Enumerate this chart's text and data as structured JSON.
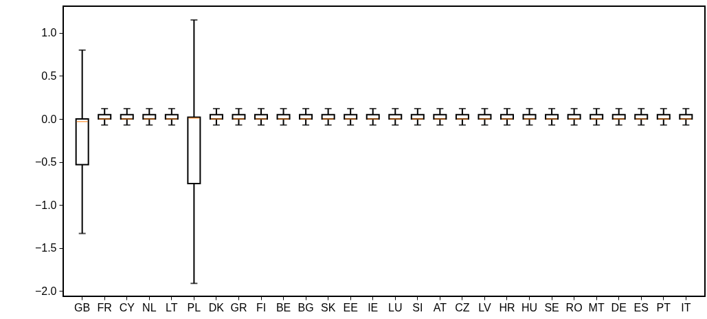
{
  "chart_data": {
    "type": "box",
    "categories": [
      "GB",
      "FR",
      "CY",
      "NL",
      "LT",
      "PL",
      "DK",
      "GR",
      "FI",
      "BE",
      "BG",
      "SK",
      "EE",
      "IE",
      "LU",
      "SI",
      "AT",
      "CZ",
      "LV",
      "HR",
      "HU",
      "SE",
      "RO",
      "MT",
      "DE",
      "ES",
      "PT",
      "IT"
    ],
    "boxes": [
      {
        "low": -1.33,
        "q1": -0.53,
        "median": -0.03,
        "q3": 0.0,
        "high": 0.8
      },
      {
        "low": -0.07,
        "q1": 0.0,
        "median": 0.0,
        "q3": 0.05,
        "high": 0.12
      },
      {
        "low": -0.07,
        "q1": 0.0,
        "median": 0.0,
        "q3": 0.05,
        "high": 0.12
      },
      {
        "low": -0.07,
        "q1": 0.0,
        "median": 0.0,
        "q3": 0.05,
        "high": 0.12
      },
      {
        "low": -0.07,
        "q1": 0.0,
        "median": 0.0,
        "q3": 0.05,
        "high": 0.12
      },
      {
        "low": -1.91,
        "q1": -0.75,
        "median": 0.01,
        "q3": 0.02,
        "high": 1.15
      },
      {
        "low": -0.07,
        "q1": 0.0,
        "median": 0.0,
        "q3": 0.05,
        "high": 0.12
      },
      {
        "low": -0.07,
        "q1": 0.0,
        "median": 0.0,
        "q3": 0.05,
        "high": 0.12
      },
      {
        "low": -0.07,
        "q1": 0.0,
        "median": 0.0,
        "q3": 0.05,
        "high": 0.12
      },
      {
        "low": -0.07,
        "q1": 0.0,
        "median": 0.0,
        "q3": 0.05,
        "high": 0.12
      },
      {
        "low": -0.07,
        "q1": 0.0,
        "median": 0.0,
        "q3": 0.05,
        "high": 0.12
      },
      {
        "low": -0.07,
        "q1": 0.0,
        "median": 0.0,
        "q3": 0.05,
        "high": 0.12
      },
      {
        "low": -0.07,
        "q1": 0.0,
        "median": 0.0,
        "q3": 0.05,
        "high": 0.12
      },
      {
        "low": -0.07,
        "q1": 0.0,
        "median": 0.0,
        "q3": 0.05,
        "high": 0.12
      },
      {
        "low": -0.07,
        "q1": 0.0,
        "median": 0.0,
        "q3": 0.05,
        "high": 0.12
      },
      {
        "low": -0.07,
        "q1": 0.0,
        "median": 0.0,
        "q3": 0.05,
        "high": 0.12
      },
      {
        "low": -0.07,
        "q1": 0.0,
        "median": 0.0,
        "q3": 0.05,
        "high": 0.12
      },
      {
        "low": -0.07,
        "q1": 0.0,
        "median": 0.0,
        "q3": 0.05,
        "high": 0.12
      },
      {
        "low": -0.07,
        "q1": 0.0,
        "median": 0.0,
        "q3": 0.05,
        "high": 0.12
      },
      {
        "low": -0.07,
        "q1": 0.0,
        "median": 0.0,
        "q3": 0.05,
        "high": 0.12
      },
      {
        "low": -0.07,
        "q1": 0.0,
        "median": 0.0,
        "q3": 0.05,
        "high": 0.12
      },
      {
        "low": -0.07,
        "q1": 0.0,
        "median": 0.0,
        "q3": 0.05,
        "high": 0.12
      },
      {
        "low": -0.07,
        "q1": 0.0,
        "median": 0.0,
        "q3": 0.05,
        "high": 0.12
      },
      {
        "low": -0.07,
        "q1": 0.0,
        "median": 0.0,
        "q3": 0.05,
        "high": 0.12
      },
      {
        "low": -0.07,
        "q1": 0.0,
        "median": 0.0,
        "q3": 0.05,
        "high": 0.12
      },
      {
        "low": -0.07,
        "q1": 0.0,
        "median": 0.0,
        "q3": 0.05,
        "high": 0.12
      },
      {
        "low": -0.07,
        "q1": 0.0,
        "median": 0.0,
        "q3": 0.05,
        "high": 0.12
      },
      {
        "low": -0.07,
        "q1": 0.0,
        "median": 0.0,
        "q3": 0.05,
        "high": 0.12
      }
    ],
    "ylim": [
      -2.06,
      1.31
    ],
    "yticks": [
      {
        "value": -2,
        "label": "−2.0"
      },
      {
        "value": -1.5,
        "label": "−1.5"
      },
      {
        "value": -1,
        "label": "−1.0"
      },
      {
        "value": -0.5,
        "label": "−0.5"
      },
      {
        "value": 0,
        "label": "0.0"
      },
      {
        "value": 0.5,
        "label": "0.5"
      },
      {
        "value": 1,
        "label": "1.0"
      }
    ]
  }
}
